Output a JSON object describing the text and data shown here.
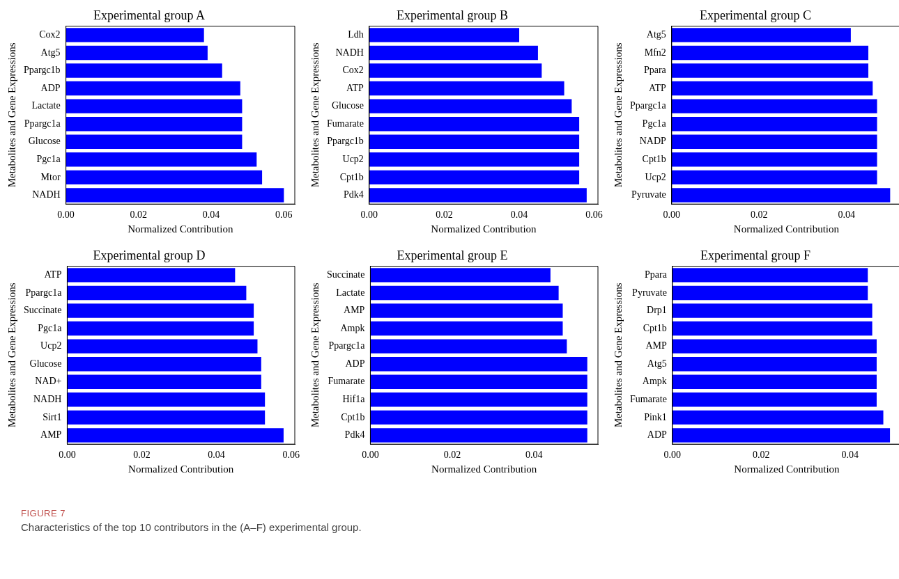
{
  "chart_data": [
    {
      "type": "bar",
      "orientation": "horizontal",
      "title": "Experimental group A",
      "xlabel": "Normalized Contribution",
      "ylabel": "Metabolites and Gene Expressions",
      "categories": [
        "Cox2",
        "Atg5",
        "Ppargc1b",
        "ADP",
        "Lactate",
        "Ppargc1a",
        "Glucose",
        "Pgc1a",
        "Mtor",
        "NADH"
      ],
      "values": [
        0.038,
        0.039,
        0.043,
        0.048,
        0.0485,
        0.0485,
        0.0485,
        0.0525,
        0.054,
        0.06
      ],
      "color": "#0000ff",
      "xlim": [
        0,
        0.063
      ],
      "xticks": [
        {
          "value": 0,
          "label": "0.00"
        },
        {
          "value": 0.02,
          "label": "0.02"
        },
        {
          "value": 0.04,
          "label": "0.04"
        },
        {
          "value": 0.06,
          "label": "0.06"
        }
      ],
      "grid": false,
      "legend": false
    },
    {
      "type": "bar",
      "orientation": "horizontal",
      "title": "Experimental group B",
      "xlabel": "Normalized Contribution",
      "ylabel": "Metabolites and Gene Expressions",
      "categories": [
        "Ldh",
        "NADH",
        "Cox2",
        "ATP",
        "Glucose",
        "Fumarate",
        "Ppargc1b",
        "Ucp2",
        "Cpt1b",
        "Pdk4"
      ],
      "values": [
        0.04,
        0.045,
        0.046,
        0.052,
        0.054,
        0.056,
        0.056,
        0.056,
        0.056,
        0.058
      ],
      "color": "#0000ff",
      "xlim": [
        0,
        0.061
      ],
      "xticks": [
        {
          "value": 0,
          "label": "0.00"
        },
        {
          "value": 0.02,
          "label": "0.02"
        },
        {
          "value": 0.04,
          "label": "0.04"
        },
        {
          "value": 0.06,
          "label": "0.06"
        }
      ],
      "grid": false,
      "legend": false
    },
    {
      "type": "bar",
      "orientation": "horizontal",
      "title": "Experimental group C",
      "xlabel": "Normalized Contribution",
      "ylabel": "Metabolites and Gene Expressions",
      "categories": [
        "Atg5",
        "Mfn2",
        "Ppara",
        "ATP",
        "Ppargc1a",
        "Pgc1a",
        "NADP",
        "Cpt1b",
        "Ucp2",
        "Pyruvate"
      ],
      "values": [
        0.041,
        0.045,
        0.045,
        0.046,
        0.047,
        0.047,
        0.047,
        0.047,
        0.047,
        0.05
      ],
      "color": "#0000ff",
      "xlim": [
        0,
        0.0525
      ],
      "xticks": [
        {
          "value": 0,
          "label": "0.00"
        },
        {
          "value": 0.02,
          "label": "0.02"
        },
        {
          "value": 0.04,
          "label": "0.04"
        }
      ],
      "grid": false,
      "legend": false
    },
    {
      "type": "bar",
      "orientation": "horizontal",
      "title": "Experimental group D",
      "xlabel": "Normalized Contribution",
      "ylabel": "Metabolites and Gene Expressions",
      "categories": [
        "ATP",
        "Ppargc1a",
        "Succinate",
        "Pgc1a",
        "Ucp2",
        "Glucose",
        "NAD+",
        "NADH",
        "Sirt1",
        "AMP"
      ],
      "values": [
        0.045,
        0.048,
        0.05,
        0.05,
        0.051,
        0.052,
        0.052,
        0.053,
        0.053,
        0.058
      ],
      "color": "#0000ff",
      "xlim": [
        0,
        0.061
      ],
      "xticks": [
        {
          "value": 0,
          "label": "0.00"
        },
        {
          "value": 0.02,
          "label": "0.02"
        },
        {
          "value": 0.04,
          "label": "0.04"
        },
        {
          "value": 0.06,
          "label": "0.06"
        }
      ],
      "grid": false,
      "legend": false
    },
    {
      "type": "bar",
      "orientation": "horizontal",
      "title": "Experimental group E",
      "xlabel": "Normalized Contribution",
      "ylabel": "Metabolites and Gene Expressions",
      "categories": [
        "Succinate",
        "Lactate",
        "AMP",
        "Ampk",
        "Ppargc1a",
        "ADP",
        "Fumarate",
        "Hif1a",
        "Cpt1b",
        "Pdk4"
      ],
      "values": [
        0.044,
        0.046,
        0.047,
        0.047,
        0.048,
        0.053,
        0.053,
        0.053,
        0.053,
        0.053
      ],
      "color": "#0000ff",
      "xlim": [
        0,
        0.0556
      ],
      "xticks": [
        {
          "value": 0,
          "label": "0.00"
        },
        {
          "value": 0.02,
          "label": "0.02"
        },
        {
          "value": 0.04,
          "label": "0.04"
        }
      ],
      "grid": false,
      "legend": false
    },
    {
      "type": "bar",
      "orientation": "horizontal",
      "title": "Experimental group F",
      "xlabel": "Normalized Contribution",
      "ylabel": "Metabolites and Gene Expressions",
      "categories": [
        "Ppara",
        "Pyruvate",
        "Drp1",
        "Cpt1b",
        "AMP",
        "Atg5",
        "Ampk",
        "Fumarate",
        "Pink1",
        "ADP"
      ],
      "values": [
        0.044,
        0.044,
        0.045,
        0.045,
        0.046,
        0.046,
        0.046,
        0.046,
        0.0475,
        0.049
      ],
      "color": "#0000ff",
      "xlim": [
        0,
        0.0515
      ],
      "xticks": [
        {
          "value": 0,
          "label": "0.00"
        },
        {
          "value": 0.02,
          "label": "0.02"
        },
        {
          "value": 0.04,
          "label": "0.04"
        }
      ],
      "grid": false,
      "legend": false
    },
    {
      "type": "other",
      "annotations": [
        "FIGURE 7",
        "Characteristics of the top 10 contributors in the (A–F) experimental group."
      ]
    }
  ]
}
